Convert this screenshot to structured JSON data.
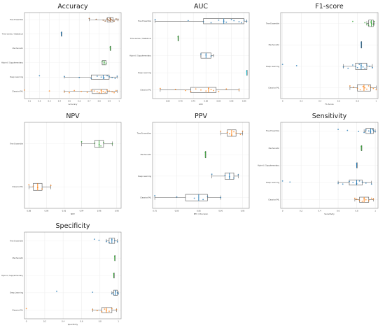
{
  "charts": [
    {
      "id": "accuracy",
      "type": "box",
      "title": "Accuracy",
      "xlabel": "Accuracy",
      "xlim": [
        0.05,
        1.02
      ],
      "xticks": [
        0.1,
        0.2,
        0.3,
        0.4,
        0.5,
        0.6,
        0.7,
        0.8,
        0.9,
        1.0
      ],
      "categories": [
        {
          "label": "Tree Ensemble",
          "color": "#8B4513",
          "box": [
            0.7,
            0.88,
            0.91,
            0.94,
            0.99
          ],
          "points": [
            0.7,
            0.77,
            0.84,
            0.86,
            0.88,
            0.89,
            0.9,
            0.91,
            0.92,
            0.93,
            0.95,
            0.97,
            0.99
          ]
        },
        {
          "label": "Time-series / Statistical",
          "color": "#1f77b4",
          "box": [
            0.42,
            0.42,
            0.42,
            0.42,
            0.42
          ],
          "points": [
            0.42
          ]
        },
        {
          "label": "Mechanistic",
          "color": "#2ca02c",
          "box": [
            0.91,
            0.91,
            0.91,
            0.91,
            0.91
          ],
          "points": [
            0.91
          ]
        },
        {
          "label": "Hybrid / Supplementary",
          "color": "#2ca02c",
          "box": [
            0.83,
            0.83,
            0.85,
            0.87,
            0.87
          ],
          "points": [
            0.83,
            0.85,
            0.87
          ]
        },
        {
          "label": "Deep Learning",
          "color": "#1f77b4",
          "box": [
            0.45,
            0.72,
            0.84,
            0.9,
            0.98
          ],
          "points": [
            0.2,
            0.45,
            0.6,
            0.72,
            0.78,
            0.82,
            0.85,
            0.88,
            0.9,
            0.93,
            0.96,
            0.98
          ]
        },
        {
          "label": "Classical ML",
          "color": "#ff7f0e",
          "box": [
            0.45,
            0.73,
            0.82,
            0.88,
            0.98
          ],
          "points": [
            0.05,
            0.3,
            0.45,
            0.5,
            0.55,
            0.62,
            0.68,
            0.72,
            0.75,
            0.78,
            0.8,
            0.82,
            0.84,
            0.86,
            0.88,
            0.9,
            0.93,
            0.95,
            0.97
          ]
        }
      ]
    },
    {
      "id": "auc",
      "type": "box",
      "title": "AUC",
      "xlabel": "AUC",
      "xlim": [
        0.59,
        0.97
      ],
      "xticks": [
        0.6,
        0.65,
        0.7,
        0.75,
        0.8,
        0.85,
        0.9,
        0.95
      ],
      "xticklabels": [
        "",
        "0.65",
        "0.70",
        "0.75",
        "0.80",
        "0.85",
        "0.90",
        "0.95"
      ],
      "categories": [
        {
          "label": "Tree Ensemble",
          "color": "#1f77b4",
          "box": [
            0.6,
            0.79,
            0.87,
            0.95,
            0.96
          ],
          "points": [
            0.6,
            0.73,
            0.79,
            0.82,
            0.85,
            0.87,
            0.88,
            0.9,
            0.91,
            0.93,
            0.94,
            0.95,
            0.96
          ]
        },
        {
          "label": "Time-series / Statistical",
          "color": "#2ca02c",
          "box": [
            0.69,
            0.69,
            0.69,
            0.69,
            0.69
          ],
          "points": [
            0.69
          ]
        },
        {
          "label": "Hybrid / Supplementary",
          "color": "#1f77b4",
          "box": [
            0.78,
            0.78,
            0.8,
            0.82,
            0.83
          ],
          "points": [
            0.78,
            0.8,
            0.82
          ]
        },
        {
          "label": "Deep Learning",
          "color": "#17becf",
          "box": [
            0.96,
            0.96,
            0.96,
            0.96,
            0.96
          ],
          "points": [
            0.96
          ]
        },
        {
          "label": "Classical ML",
          "color": "#ff7f0e",
          "box": [
            0.62,
            0.74,
            0.81,
            0.84,
            0.93
          ],
          "points": [
            0.62,
            0.68,
            0.72,
            0.74,
            0.76,
            0.78,
            0.8,
            0.81,
            0.82,
            0.83,
            0.85,
            0.88,
            0.93
          ]
        }
      ]
    },
    {
      "id": "f1",
      "type": "box",
      "title": "F1-score",
      "xlabel": "F1-Score",
      "xlim": [
        -0.02,
        1.02
      ],
      "xticks": [
        0.0,
        0.2,
        0.4,
        0.6,
        0.8,
        1.0
      ],
      "categories": [
        {
          "label": "Tree Ensemble",
          "color": "#2ca02c",
          "box": [
            0.9,
            0.92,
            0.95,
            0.97,
            0.98
          ],
          "points": [
            0.75,
            0.88,
            0.9,
            0.92,
            0.94,
            0.95,
            0.97,
            0.98
          ]
        },
        {
          "label": "Mechanistic",
          "color": "#1f77b4",
          "box": [
            0.84,
            0.84,
            0.84,
            0.84,
            0.84
          ],
          "points": [
            0.84
          ]
        },
        {
          "label": "Deep Learning",
          "color": "#1f77b4",
          "box": [
            0.65,
            0.78,
            0.84,
            0.9,
            0.96
          ],
          "points": [
            0.0,
            0.15,
            0.65,
            0.7,
            0.75,
            0.78,
            0.8,
            0.82,
            0.84,
            0.86,
            0.88,
            0.9,
            0.93,
            0.96
          ]
        },
        {
          "label": "Classical ML",
          "color": "#ff7f0e",
          "box": [
            0.72,
            0.8,
            0.87,
            0.94,
            1.0
          ],
          "points": [
            0.72,
            0.76,
            0.8,
            0.83,
            0.86,
            0.88,
            0.9,
            0.92,
            0.94,
            0.97,
            1.0
          ]
        }
      ]
    },
    {
      "id": "npv",
      "type": "box",
      "title": "NPV",
      "xlabel": "NPV",
      "xlim": [
        0.875,
        0.985
      ],
      "xticks": [
        0.88,
        0.9,
        0.92,
        0.94,
        0.96,
        0.98
      ],
      "xticklabels": [
        "0.88",
        "0.90",
        "0.92",
        "0.94",
        "0.96",
        "0.98"
      ],
      "categories": [
        {
          "label": "Tree Ensemble",
          "color": "#2ca02c",
          "box": [
            0.94,
            0.955,
            0.96,
            0.965,
            0.975
          ],
          "points": [
            0.94,
            0.955,
            0.96,
            0.962,
            0.965,
            0.975
          ]
        },
        {
          "label": "Classical ML",
          "color": "#ff7f0e",
          "box": [
            0.88,
            0.885,
            0.89,
            0.895,
            0.905
          ],
          "points": [
            0.88,
            0.885,
            0.89,
            0.895,
            0.905
          ]
        }
      ]
    },
    {
      "id": "ppv",
      "type": "box",
      "title": "PPV",
      "xlabel": "PPV / Precision",
      "xlim": [
        0.745,
        0.965
      ],
      "xticks": [
        0.75,
        0.8,
        0.85,
        0.9,
        0.95
      ],
      "xticklabels": [
        "0.75",
        "0.80",
        "0.85",
        "0.90",
        "0.95"
      ],
      "categories": [
        {
          "label": "Tree Ensembles",
          "color": "#ff7f0e",
          "box": [
            0.9,
            0.915,
            0.925,
            0.935,
            0.95
          ],
          "points": [
            0.9,
            0.915,
            0.92,
            0.925,
            0.93,
            0.935,
            0.945,
            0.95
          ]
        },
        {
          "label": "Mechanistic",
          "color": "#2ca02c",
          "box": [
            0.865,
            0.865,
            0.865,
            0.865,
            0.865
          ],
          "points": [
            0.865
          ]
        },
        {
          "label": "Deep Learning",
          "color": "#1f77b4",
          "box": [
            0.88,
            0.91,
            0.92,
            0.93,
            0.94
          ],
          "points": [
            0.88,
            0.91,
            0.92,
            0.93,
            0.94
          ]
        },
        {
          "label": "Classical ML",
          "color": "#1f77b4",
          "box": [
            0.75,
            0.82,
            0.85,
            0.87,
            0.9
          ],
          "points": [
            0.75,
            0.8,
            0.84,
            0.86,
            0.87,
            0.9
          ]
        }
      ]
    },
    {
      "id": "sensitivity",
      "type": "box",
      "title": "Sensitivity",
      "xlabel": "Sensitivity",
      "xlim": [
        -0.02,
        1.03
      ],
      "xticks": [
        0.0,
        0.2,
        0.4,
        0.6,
        0.8,
        1.0
      ],
      "categories": [
        {
          "label": "Tree Ensemble",
          "color": "#1f77b4",
          "box": [
            0.88,
            0.9,
            0.95,
            0.98,
            1.0
          ],
          "points": [
            0.6,
            0.7,
            0.82,
            0.88,
            0.9,
            0.93,
            0.95,
            0.97,
            0.98,
            1.0
          ]
        },
        {
          "label": "Mechanistic",
          "color": "#2ca02c",
          "box": [
            0.85,
            0.85,
            0.85,
            0.85,
            0.85
          ],
          "points": [
            0.85
          ]
        },
        {
          "label": "Hybrid / Supplementary",
          "color": "#1f77b4",
          "box": [
            0.8,
            0.8,
            0.8,
            0.8,
            0.8
          ],
          "points": [
            0.8
          ]
        },
        {
          "label": "Deep Learning",
          "color": "#1f77b4",
          "box": [
            0.6,
            0.72,
            0.8,
            0.86,
            0.96
          ],
          "points": [
            0.0,
            0.08,
            0.6,
            0.65,
            0.72,
            0.76,
            0.8,
            0.83,
            0.86,
            0.9,
            0.96
          ]
        },
        {
          "label": "Classical ML",
          "color": "#ff7f0e",
          "box": [
            0.78,
            0.83,
            0.88,
            0.93,
            0.98
          ],
          "points": [
            0.78,
            0.8,
            0.83,
            0.86,
            0.88,
            0.9,
            0.93,
            0.96,
            0.98
          ]
        }
      ]
    },
    {
      "id": "specificity",
      "type": "box",
      "title": "Specificity",
      "xlabel": "Specificity",
      "xlim": [
        -0.02,
        1.03
      ],
      "xticks": [
        0.0,
        0.2,
        0.4,
        0.6,
        0.8,
        1.0
      ],
      "categories": [
        {
          "label": "Tree Ensemble",
          "color": "#1f77b4",
          "box": [
            0.87,
            0.9,
            0.93,
            0.96,
            0.99
          ],
          "points": [
            0.74,
            0.79,
            0.87,
            0.9,
            0.93,
            0.96,
            0.99
          ]
        },
        {
          "label": "Mechanistic",
          "color": "#2ca02c",
          "box": [
            0.96,
            0.96,
            0.96,
            0.96,
            0.96
          ],
          "points": [
            0.96
          ]
        },
        {
          "label": "Hybrid / Supplementary",
          "color": "#2ca02c",
          "box": [
            0.95,
            0.95,
            0.95,
            0.95,
            0.95
          ],
          "points": [
            0.95
          ]
        },
        {
          "label": "Deep Learning",
          "color": "#1f77b4",
          "box": [
            0.93,
            0.95,
            0.97,
            0.99,
            1.0
          ],
          "points": [
            0.33,
            0.72,
            0.93,
            0.95,
            0.97,
            0.99,
            1.0
          ]
        },
        {
          "label": "Classical ML",
          "color": "#ff7f0e",
          "box": [
            0.72,
            0.82,
            0.87,
            0.93,
            0.98
          ],
          "points": [
            0.0,
            0.72,
            0.77,
            0.82,
            0.85,
            0.87,
            0.9,
            0.93,
            0.98
          ]
        }
      ]
    }
  ]
}
